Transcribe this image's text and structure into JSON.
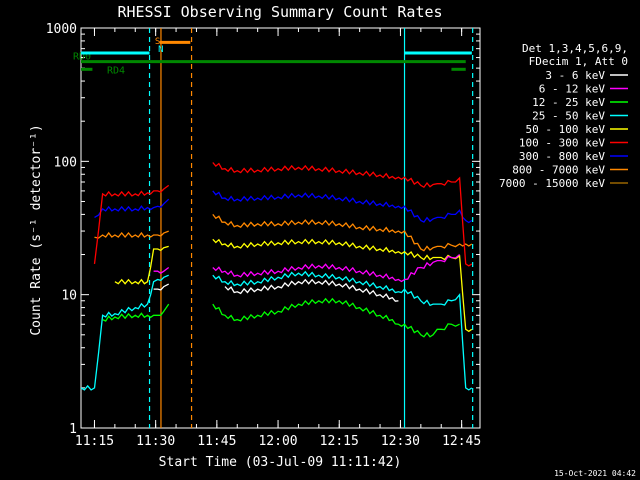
{
  "chart_data": {
    "type": "line",
    "title": "RHESSI Observing Summary Count Rates",
    "xlabel": "Start Time (03-Jul-09 11:11:42)",
    "ylabel": "Count Rate (s⁻¹ detector⁻¹)",
    "yscale": "log",
    "xlim": [
      "11:11:42",
      "12:49:30"
    ],
    "ylim": [
      1,
      1000
    ],
    "xticks": [
      "11:15",
      "11:30",
      "11:45",
      "12:00",
      "12:15",
      "12:30",
      "12:45"
    ],
    "yticks": [
      "1",
      "10",
      "100",
      "1000"
    ],
    "footer_date": "15-Oct-2021 04:42",
    "legend_header": [
      "Det 1,3,4,5,6,9,",
      "FDecim 1, Att 0"
    ],
    "legend_placement": "right",
    "x_time_minutes": [
      11.7,
      15.0,
      17.0,
      20.0,
      25.0,
      28.0,
      29.5,
      30.5,
      32.0,
      33.2,
      36.0,
      40.0,
      43.0,
      44.0,
      47.0,
      50.0,
      55.0,
      60.0,
      65.0,
      70.0,
      75.0,
      80.0,
      85.0,
      88.0,
      89.5,
      91.0,
      95.0,
      98.0,
      99.0,
      100.0,
      102.5,
      104.5,
      106.0,
      107.5
    ],
    "series": [
      {
        "name": "3 - 6 keV",
        "color": "#ffffff",
        "values": [
          null,
          null,
          null,
          null,
          null,
          null,
          11.0,
          11.0,
          11.5,
          12.0,
          null,
          null,
          null,
          null,
          11.5,
          10.5,
          11.0,
          11.5,
          12.5,
          12.5,
          12.0,
          11.0,
          10.0,
          9.5,
          9.0,
          null,
          null,
          null,
          null,
          null,
          null,
          null,
          null,
          null
        ]
      },
      {
        "name": "6 - 12 keV",
        "color": "#ff00ff",
        "values": [
          null,
          null,
          null,
          null,
          null,
          null,
          15.0,
          15.0,
          15.0,
          16.0,
          null,
          null,
          null,
          16.0,
          15.0,
          14.0,
          14.5,
          15.0,
          16.0,
          16.5,
          16.0,
          15.0,
          14.0,
          13.5,
          13.0,
          13.0,
          16.0,
          17.5,
          18.0,
          18.0,
          19.0,
          20.0,
          null,
          null
        ]
      },
      {
        "name": "12 - 25 keV",
        "color": "#00ff00",
        "values": [
          null,
          null,
          6.5,
          6.8,
          7.0,
          7.0,
          7.0,
          7.0,
          7.5,
          8.5,
          null,
          null,
          null,
          8.5,
          7.0,
          6.5,
          7.0,
          7.5,
          8.5,
          9.0,
          9.0,
          8.0,
          7.0,
          6.5,
          6.0,
          6.0,
          5.0,
          5.0,
          5.5,
          5.5,
          6.0,
          6.0,
          null,
          null
        ]
      },
      {
        "name": "25 - 50 keV",
        "color": "#00ffff",
        "values": [
          2.0,
          2.0,
          7.0,
          7.2,
          8.0,
          8.5,
          12.5,
          13.0,
          13.5,
          14.0,
          null,
          null,
          null,
          14.0,
          12.5,
          12.0,
          12.5,
          13.5,
          14.5,
          14.0,
          13.5,
          12.5,
          11.5,
          11.0,
          10.5,
          11.0,
          9.0,
          8.5,
          8.5,
          8.5,
          9.0,
          10.0,
          2.0,
          2.0
        ]
      },
      {
        "name": "50 - 100 keV",
        "color": "#ffff00",
        "values": [
          null,
          null,
          null,
          12.5,
          12.5,
          12.5,
          22.0,
          22.0,
          22.5,
          23.0,
          null,
          null,
          null,
          26.0,
          24.0,
          23.0,
          24.0,
          24.5,
          25.0,
          25.0,
          24.5,
          23.0,
          22.0,
          21.5,
          21.0,
          21.0,
          19.0,
          19.0,
          19.0,
          19.0,
          19.0,
          19.5,
          5.5,
          5.5
        ]
      },
      {
        "name": "100 - 300 keV",
        "color": "#ff0000",
        "values": [
          null,
          17.0,
          57.0,
          57.0,
          57.0,
          58.0,
          60.0,
          60.0,
          62.0,
          66.0,
          null,
          null,
          null,
          98.0,
          88.0,
          85.0,
          86.0,
          88.0,
          90.0,
          88.0,
          85.0,
          82.0,
          79.0,
          77.0,
          76.0,
          76.0,
          66.0,
          67.0,
          68.0,
          68.0,
          70.0,
          75.0,
          17.0,
          17.0
        ]
      },
      {
        "name": "300 - 800 keV",
        "color": "#0000ff",
        "values": [
          null,
          38.0,
          44.0,
          44.0,
          44.0,
          45.0,
          45.0,
          46.0,
          48.0,
          52.0,
          null,
          null,
          null,
          60.0,
          53.0,
          52.0,
          53.0,
          54.0,
          56.0,
          55.0,
          53.0,
          50.0,
          48.0,
          47.0,
          46.0,
          46.0,
          36.0,
          37.0,
          38.0,
          38.0,
          40.0,
          43.0,
          36.0,
          36.0
        ]
      },
      {
        "name": "800 - 7000 keV",
        "color": "#ff8800",
        "values": [
          null,
          27.0,
          28.0,
          28.0,
          28.0,
          28.0,
          28.0,
          28.0,
          29.0,
          30.0,
          null,
          null,
          null,
          40.0,
          35.0,
          33.0,
          34.0,
          34.0,
          35.0,
          35.0,
          34.0,
          32.0,
          31.0,
          30.5,
          30.0,
          30.0,
          22.0,
          22.5,
          23.0,
          23.0,
          23.5,
          24.0,
          24.0,
          24.0
        ]
      },
      {
        "name": "7000 - 15000 keV",
        "color": "#996600",
        "values": [
          null,
          null,
          null,
          null,
          null,
          null,
          null,
          null,
          null,
          null,
          null,
          null,
          null,
          null,
          null,
          null,
          null,
          null,
          null,
          null,
          null,
          null,
          null,
          null,
          null,
          null,
          null,
          null,
          null,
          null,
          null,
          null,
          null,
          null
        ]
      }
    ],
    "state_bars": [
      {
        "label": "RD0",
        "color": "#008800",
        "level": 560,
        "segments": [
          [
            11.7,
            106.0
          ]
        ]
      },
      {
        "label": "RD4",
        "color": "#008800",
        "level": 490,
        "segments": [
          [
            11.7,
            14.5
          ],
          [
            102.5,
            106.0
          ]
        ]
      },
      {
        "label": "",
        "color": "#00ffff",
        "level": 650,
        "segments": [
          [
            11.7,
            28.5
          ],
          [
            91.0,
            107.5
          ]
        ]
      },
      {
        "label": "",
        "color": "#ff8800",
        "level": 780,
        "segments": [
          [
            31.0,
            38.5
          ]
        ]
      }
    ],
    "state_bar_letters": [
      {
        "text": "S",
        "color": "#ff8800",
        "at_minutes": 29.8
      },
      {
        "text": "N",
        "color": "#00ffff",
        "at_minutes": 30.6
      }
    ],
    "vertical_markers": [
      {
        "minute": 28.5,
        "color": "#00ffff",
        "style": "dashed"
      },
      {
        "minute": 31.3,
        "color": "#ff8800",
        "style": "solid"
      },
      {
        "minute": 38.8,
        "color": "#ff8800",
        "style": "dashed"
      },
      {
        "minute": 91.0,
        "color": "#00ffff",
        "style": "solid"
      },
      {
        "minute": 107.7,
        "color": "#00ffff",
        "style": "dashed"
      }
    ],
    "gaps": [
      [
        33.5,
        43.0
      ]
    ]
  }
}
